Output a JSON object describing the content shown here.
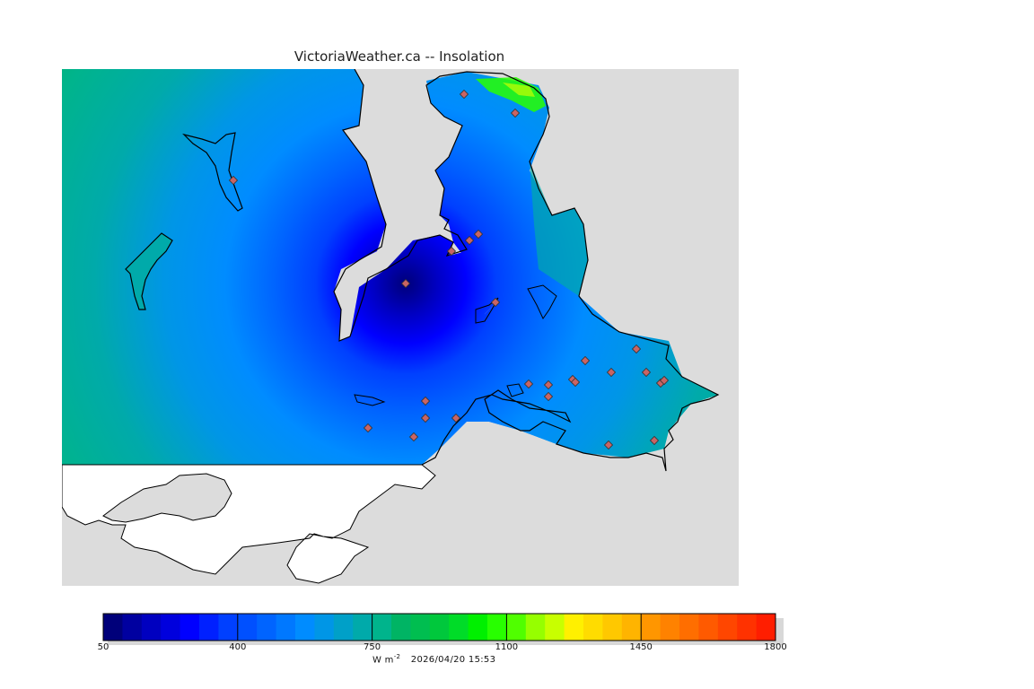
{
  "title": "VictoriaWeather.ca -- Insolation",
  "colorbar": {
    "min": 50,
    "max": 1800,
    "step": 50,
    "tick_labels": [
      "50",
      "400",
      "750",
      "1100",
      "1450",
      "1800"
    ],
    "colors": [
      "#00007a",
      "#0000a0",
      "#0000c0",
      "#0000dd",
      "#0000ff",
      "#0020ff",
      "#0040ff",
      "#0050ff",
      "#0064ff",
      "#0078ff",
      "#008cff",
      "#0096e6",
      "#00a0c8",
      "#00aaaa",
      "#00b48c",
      "#00b464",
      "#00be50",
      "#00c83c",
      "#00dc28",
      "#00f000",
      "#28ff00",
      "#50ff00",
      "#96ff00",
      "#c8ff00",
      "#fff000",
      "#ffdc00",
      "#ffc800",
      "#ffb400",
      "#ff9600",
      "#ff8200",
      "#ff6e00",
      "#ff5a00",
      "#ff4600",
      "#ff3200",
      "#ff1e00"
    ],
    "units_label": "W m",
    "units_exp": "-2",
    "timestamp": "2026/04/20 15:53"
  },
  "map": {
    "background_sea_color": "#dcdcdc",
    "outside_color": "#ffffff",
    "center_value": 50,
    "station_count": 25
  }
}
